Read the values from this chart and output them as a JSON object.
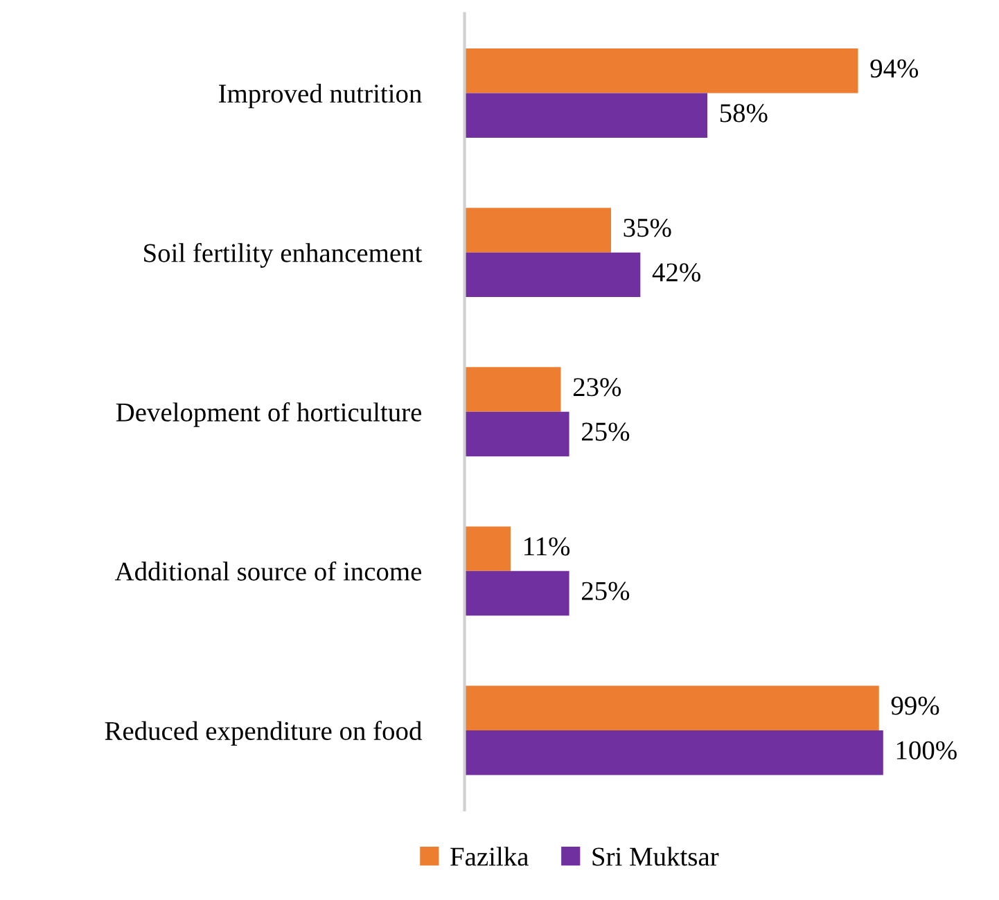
{
  "chart_data": {
    "type": "bar",
    "orientation": "horizontal",
    "categories": [
      "Improved nutrition",
      "Soil fertility enhancement",
      "Development of horticulture",
      "Additional source of income",
      "Reduced expenditure on food"
    ],
    "series": [
      {
        "name": "Fazilka",
        "color": "#ed7d31",
        "values": [
          94,
          35,
          23,
          11,
          99
        ],
        "value_labels": [
          "94%",
          "35%",
          "23%",
          "11%",
          "99%"
        ]
      },
      {
        "name": "Sri Muktsar",
        "color": "#7030a0",
        "values": [
          58,
          42,
          25,
          25,
          100
        ],
        "value_labels": [
          "58%",
          "42%",
          "25%",
          "25%",
          "100%"
        ]
      }
    ],
    "tick_labels": "y",
    "grid": false,
    "legend": "bottom"
  }
}
